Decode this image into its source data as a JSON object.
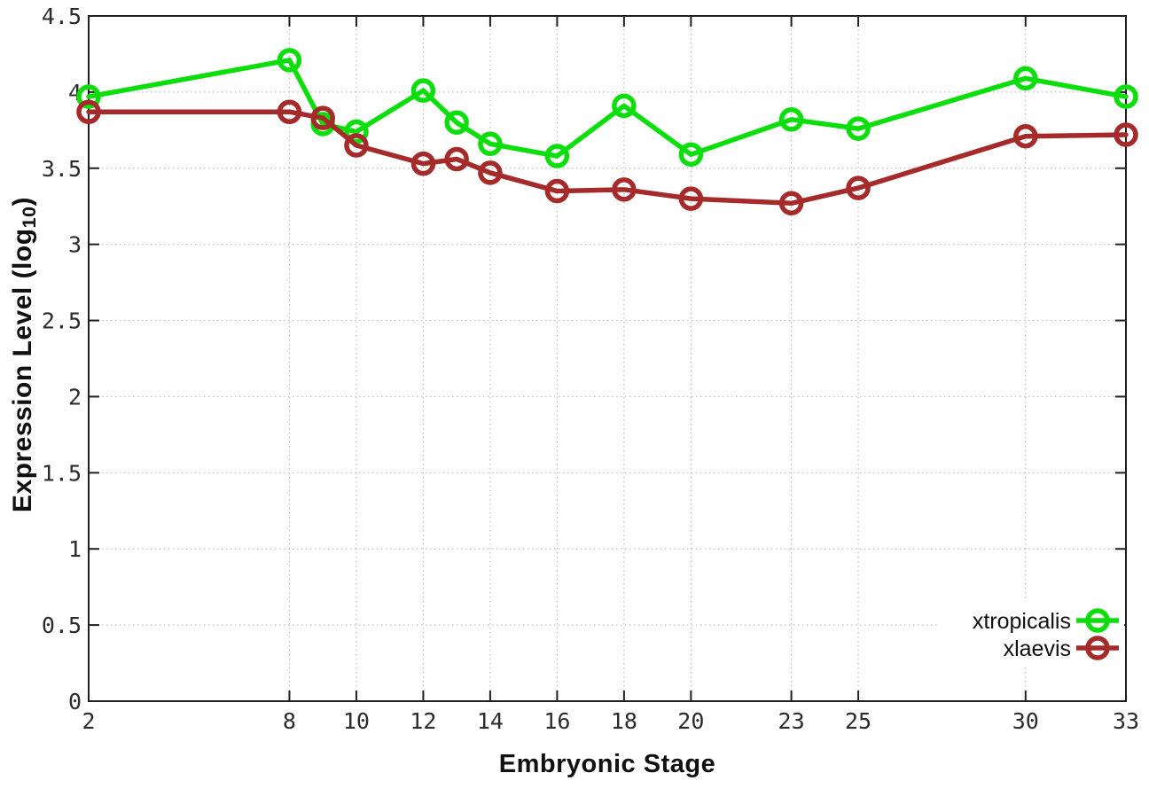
{
  "page": {
    "background": "#ffffff"
  },
  "chart_data": {
    "type": "line",
    "title": "",
    "xlabel": "Embryonic Stage",
    "ylabel": "Expression Level (log10)",
    "ylabel_parts": {
      "main": "Expression Level (log",
      "sub": "10",
      "close": ")"
    },
    "xlim": [
      2,
      33
    ],
    "ylim": [
      0,
      4.5
    ],
    "x_ticks": [
      2,
      8,
      10,
      12,
      14,
      16,
      18,
      20,
      23,
      25,
      30,
      33
    ],
    "x_tick_labels": [
      "2",
      "8",
      "10",
      "12",
      "14",
      "16",
      "18",
      "20",
      "23",
      "25",
      "30",
      "33"
    ],
    "y_ticks": [
      0,
      0.5,
      1,
      1.5,
      2,
      2.5,
      3,
      3.5,
      4,
      4.5
    ],
    "y_tick_labels": [
      "0",
      "0.5",
      "1",
      "1.5",
      "2",
      "2.5",
      "3",
      "3.5",
      "4",
      "4.5"
    ],
    "grid": true,
    "legend_position": "bottom-right",
    "x": [
      2,
      8,
      9,
      10,
      12,
      13,
      14,
      16,
      18,
      20,
      23,
      25,
      30,
      33
    ],
    "series": [
      {
        "name": "xtropicalis",
        "color": "#0CDE0C",
        "marker": "open-circle",
        "values": [
          3.97,
          4.21,
          3.79,
          3.74,
          4.01,
          3.8,
          3.66,
          3.58,
          3.91,
          3.59,
          3.82,
          3.76,
          4.09,
          3.97
        ]
      },
      {
        "name": "xlaevis",
        "color": "#A52A2A",
        "marker": "open-circle",
        "values": [
          3.87,
          3.87,
          3.83,
          3.65,
          3.53,
          3.56,
          3.47,
          3.35,
          3.36,
          3.3,
          3.27,
          3.37,
          3.71,
          3.72
        ]
      }
    ],
    "colors": {
      "grid": "#bfbfbf",
      "axis": "#1f1f1f",
      "tick_text": "#2b2b2b",
      "legend_text": "#111111",
      "background": "#ffffff"
    }
  }
}
